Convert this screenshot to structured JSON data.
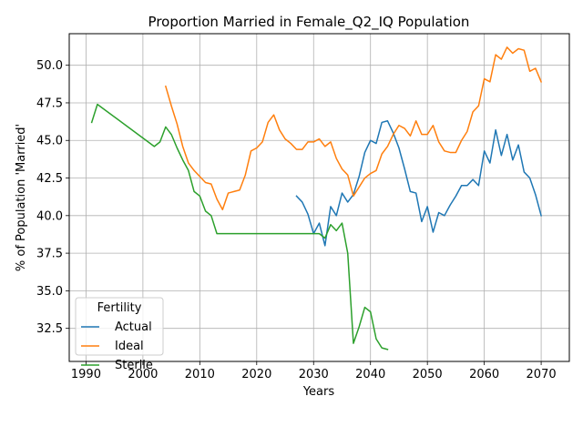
{
  "chart_data": {
    "type": "line",
    "title": "Proportion Married in Female_Q2_IQ Population",
    "xlabel": "Years",
    "ylabel": "% of Population 'Married'",
    "xlim": [
      1987.05,
      2074.95
    ],
    "ylim": [
      30.3,
      52.1
    ],
    "xticks": [
      1990,
      2000,
      2010,
      2020,
      2030,
      2040,
      2050,
      2060,
      2070
    ],
    "yticks": [
      32.5,
      35.0,
      37.5,
      40.0,
      42.5,
      45.0,
      47.5,
      50.0
    ],
    "grid": true,
    "legend": {
      "title": "Fertility",
      "position": "lower-left"
    },
    "colors": {
      "Actual": "#1f77b4",
      "Ideal": "#ff7f0e",
      "Sterile": "#2ca02c"
    },
    "series": [
      {
        "name": "Actual",
        "x": [
          2027,
          2028,
          2029,
          2030,
          2031,
          2032,
          2033,
          2034,
          2035,
          2036,
          2037,
          2038,
          2039,
          2040,
          2041,
          2042,
          2043,
          2044,
          2045,
          2046,
          2047,
          2048,
          2049,
          2050,
          2051,
          2052,
          2053,
          2054,
          2055,
          2056,
          2057,
          2058,
          2059,
          2060,
          2061,
          2062,
          2063,
          2064,
          2065,
          2066,
          2067,
          2068,
          2069,
          2070
        ],
        "y": [
          41.3,
          40.9,
          40.1,
          38.8,
          39.5,
          38.0,
          40.6,
          40.0,
          41.5,
          40.9,
          41.4,
          42.6,
          44.2,
          45.0,
          44.8,
          46.2,
          46.3,
          45.5,
          44.5,
          43.1,
          41.6,
          41.5,
          39.6,
          40.6,
          38.9,
          40.2,
          40.0,
          40.7,
          41.3,
          42.0,
          42.0,
          42.4,
          42.0,
          44.3,
          43.5,
          45.7,
          44.0,
          45.4,
          43.7,
          44.7,
          42.9,
          42.5,
          41.4,
          40.0
        ]
      },
      {
        "name": "Ideal",
        "x": [
          2004,
          2005,
          2006,
          2007,
          2008,
          2009,
          2010,
          2011,
          2012,
          2013,
          2014,
          2015,
          2016,
          2017,
          2018,
          2019,
          2020,
          2021,
          2022,
          2023,
          2024,
          2025,
          2026,
          2027,
          2028,
          2029,
          2030,
          2031,
          2032,
          2033,
          2034,
          2035,
          2036,
          2037,
          2038,
          2039,
          2040,
          2041,
          2042,
          2043,
          2044,
          2045,
          2046,
          2047,
          2048,
          2049,
          2050,
          2051,
          2052,
          2053,
          2054,
          2055,
          2056,
          2057,
          2058,
          2059,
          2060,
          2061,
          2062,
          2063,
          2064,
          2065,
          2066,
          2067,
          2068,
          2069,
          2070
        ],
        "y": [
          48.6,
          47.3,
          46.1,
          44.6,
          43.5,
          43.0,
          42.6,
          42.2,
          42.1,
          41.1,
          40.4,
          41.5,
          41.6,
          41.7,
          42.7,
          44.3,
          44.5,
          44.9,
          46.2,
          46.7,
          45.7,
          45.1,
          44.8,
          44.4,
          44.4,
          44.9,
          44.9,
          45.1,
          44.6,
          44.9,
          43.8,
          43.1,
          42.7,
          41.3,
          41.9,
          42.5,
          42.8,
          43.0,
          44.1,
          44.6,
          45.4,
          46.0,
          45.8,
          45.3,
          46.3,
          45.4,
          45.4,
          46.0,
          44.9,
          44.3,
          44.2,
          44.2,
          45.0,
          45.6,
          46.9,
          47.3,
          49.1,
          48.9,
          50.7,
          50.4,
          51.2,
          50.8,
          51.1,
          51.0,
          49.6,
          49.8,
          48.9
        ]
      },
      {
        "name": "Sterile",
        "x": [
          1991,
          1992,
          2002,
          2003,
          2004,
          2005,
          2006,
          2007,
          2008,
          2009,
          2010,
          2011,
          2012,
          2013,
          2014,
          2015,
          2016,
          2017,
          2018,
          2019,
          2020,
          2021,
          2022,
          2023,
          2024,
          2025,
          2026,
          2027,
          2028,
          2029,
          2030,
          2031,
          2032,
          2033,
          2034,
          2035,
          2036,
          2037,
          2038,
          2039,
          2040,
          2041,
          2042,
          2043
        ],
        "y": [
          46.2,
          47.4,
          44.6,
          44.9,
          45.9,
          45.4,
          44.5,
          43.7,
          43.0,
          41.6,
          41.3,
          40.3,
          40.0,
          38.8,
          38.8,
          38.8,
          38.8,
          38.8,
          38.8,
          38.8,
          38.8,
          38.8,
          38.8,
          38.8,
          38.8,
          38.8,
          38.8,
          38.8,
          38.8,
          38.8,
          38.8,
          38.8,
          38.5,
          39.4,
          39.0,
          39.5,
          37.5,
          31.5,
          32.6,
          33.9,
          33.6,
          31.8,
          31.2,
          31.1
        ]
      }
    ]
  }
}
